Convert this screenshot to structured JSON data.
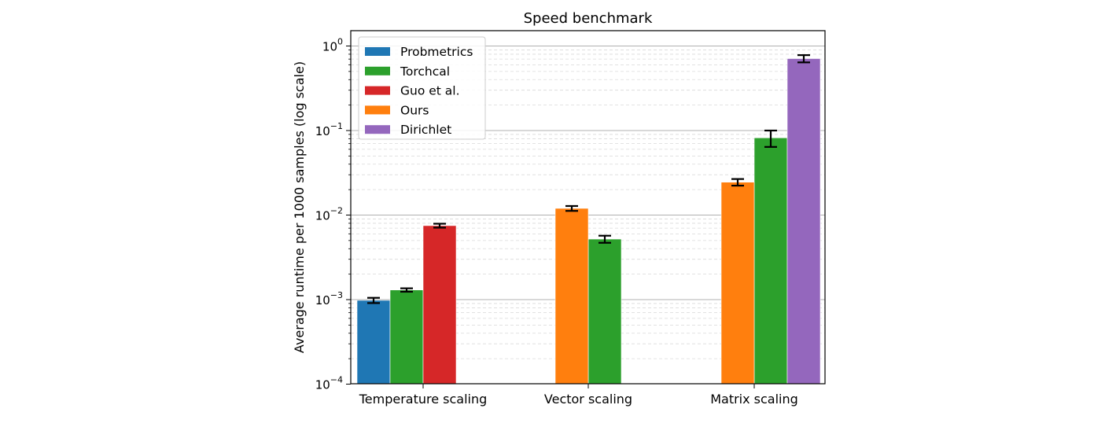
{
  "chart_data": {
    "type": "bar",
    "title": "Speed benchmark",
    "xlabel": "",
    "ylabel": "Average runtime per 1000 samples (log scale)",
    "yscale": "log",
    "ylim": [
      0.0001,
      1.5
    ],
    "yticks": [
      {
        "value": 0.0001,
        "base": "10",
        "exp": "−4"
      },
      {
        "value": 0.001,
        "base": "10",
        "exp": "−3"
      },
      {
        "value": 0.01,
        "base": "10",
        "exp": "−2"
      },
      {
        "value": 0.1,
        "base": "10",
        "exp": "−1"
      },
      {
        "value": 1,
        "base": "10",
        "exp": "0"
      }
    ],
    "grid": "y-major-and-minor",
    "legend_position": "top-left",
    "categories": [
      "Temperature scaling",
      "Vector scaling",
      "Matrix scaling"
    ],
    "series": [
      {
        "name": "Probmetrics",
        "color": "#1f77b4",
        "bars": [
          {
            "category": "Temperature scaling",
            "slot": -2,
            "value": 0.00098,
            "err": 7e-05
          }
        ]
      },
      {
        "name": "Torchcal",
        "color": "#2ca02c",
        "bars": [
          {
            "category": "Temperature scaling",
            "slot": -1,
            "value": 0.0013,
            "err": 6e-05
          },
          {
            "category": "Vector scaling",
            "slot": 0,
            "value": 0.0052,
            "err": 0.0005
          },
          {
            "category": "Matrix scaling",
            "slot": 0,
            "value": 0.082,
            "err": 0.018
          }
        ]
      },
      {
        "name": "Guo et al.",
        "color": "#d62728",
        "bars": [
          {
            "category": "Temperature scaling",
            "slot": 0,
            "value": 0.0075,
            "err": 0.0004
          }
        ]
      },
      {
        "name": "Ours",
        "color": "#ff7f0e",
        "bars": [
          {
            "category": "Vector scaling",
            "slot": -1,
            "value": 0.012,
            "err": 0.0008
          },
          {
            "category": "Matrix scaling",
            "slot": -1,
            "value": 0.0245,
            "err": 0.0022
          }
        ]
      },
      {
        "name": "Dirichlet",
        "color": "#9467bd",
        "bars": [
          {
            "category": "Matrix scaling",
            "slot": 1,
            "value": 0.71,
            "err": 0.07
          }
        ]
      }
    ]
  }
}
